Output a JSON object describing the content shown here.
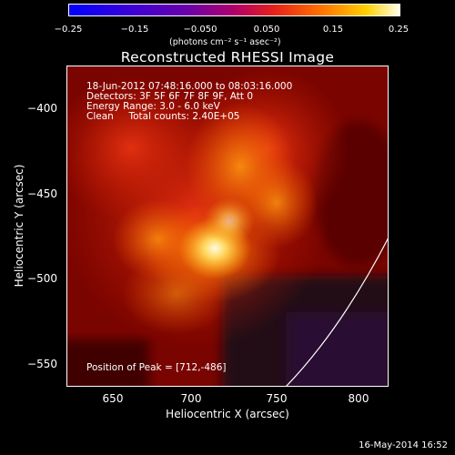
{
  "colorbar": {
    "ticks": [
      "−0.25",
      "−0.15",
      "−0.050",
      "0.050",
      "0.15",
      "0.25"
    ],
    "units": "(photons cm⁻² s⁻¹ asec⁻²)"
  },
  "title": "Reconstructed RHESSI Image",
  "info": {
    "time_range": "18-Jun-2012 07:48:16.000 to 08:03:16.000",
    "detectors": "Detectors: 3F 5F 6F 7F 8F 9F, Att 0",
    "energy": "Energy Range: 3.0 - 6.0 keV",
    "clean": "Clean     Total counts: 2.40E+05"
  },
  "peak": "Position of Peak = [712,-486]",
  "axes": {
    "x_label": "Heliocentric X (arcsec)",
    "y_label": "Heliocentric Y (arcsec)",
    "x_ticks": [
      "650",
      "700",
      "750",
      "800"
    ],
    "y_ticks": [
      "−400",
      "−450",
      "−500",
      "−550"
    ]
  },
  "footer": "16-May-2014 16:52"
}
